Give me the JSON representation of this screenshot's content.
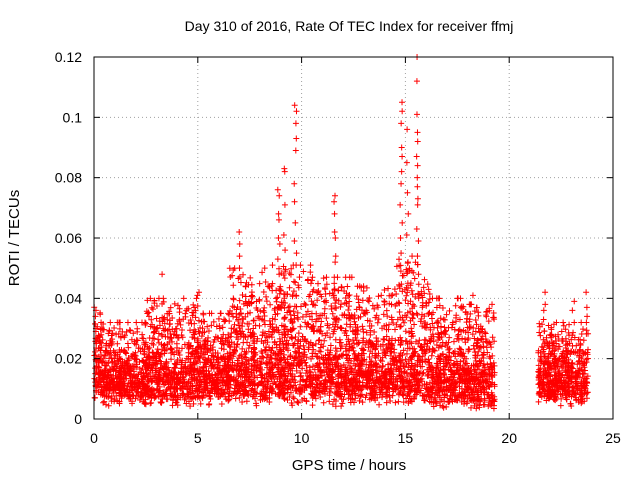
{
  "chart_data": {
    "type": "scatter",
    "title": "Day 310 of 2016, Rate Of TEC Index for receiver ffmj",
    "xlabel": "GPS time / hours",
    "ylabel": "ROTI / TECUs",
    "xlim": [
      0,
      25
    ],
    "ylim": [
      0,
      0.12
    ],
    "xticks": [
      0,
      5,
      10,
      15,
      20,
      25
    ],
    "xtick_labels": [
      "0",
      "5",
      "10",
      "15",
      "20",
      "25"
    ],
    "yticks": [
      0,
      0.02,
      0.04,
      0.06,
      0.08,
      0.1,
      0.12
    ],
    "ytick_labels": [
      "0",
      "0.02",
      "0.04",
      "0.06",
      "0.08",
      "0.1",
      "0.12"
    ],
    "grid": true,
    "marker": "+",
    "color": "#ff0000",
    "series": [
      {
        "name": "ROTI",
        "envelope": [
          {
            "x_start": 0.0,
            "x_end": 0.3,
            "low": 0.005,
            "high": 0.036
          },
          {
            "x_start": 0.3,
            "x_end": 2.5,
            "low": 0.004,
            "high": 0.03
          },
          {
            "x_start": 2.5,
            "x_end": 5.0,
            "low": 0.004,
            "high": 0.038
          },
          {
            "x_start": 5.0,
            "x_end": 6.5,
            "low": 0.004,
            "high": 0.033
          },
          {
            "x_start": 6.5,
            "x_end": 8.5,
            "low": 0.004,
            "high": 0.048
          },
          {
            "x_start": 8.5,
            "x_end": 10.5,
            "low": 0.004,
            "high": 0.049
          },
          {
            "x_start": 10.5,
            "x_end": 12.5,
            "low": 0.004,
            "high": 0.045
          },
          {
            "x_start": 12.5,
            "x_end": 14.5,
            "low": 0.004,
            "high": 0.042
          },
          {
            "x_start": 14.5,
            "x_end": 16.2,
            "low": 0.004,
            "high": 0.052
          },
          {
            "x_start": 16.2,
            "x_end": 18.0,
            "low": 0.003,
            "high": 0.038
          },
          {
            "x_start": 18.0,
            "x_end": 19.3,
            "low": 0.002,
            "high": 0.036
          },
          {
            "x_start": 21.4,
            "x_end": 23.8,
            "low": 0.004,
            "high": 0.03
          }
        ],
        "data_gap": [
          19.3,
          21.4
        ],
        "peaks": [
          {
            "x": 0.1,
            "values": [
              0.034,
              0.036,
              0.03,
              0.029
            ]
          },
          {
            "x": 3.3,
            "values": [
              0.048
            ]
          },
          {
            "x": 5.0,
            "values": [
              0.042,
              0.041
            ]
          },
          {
            "x": 7.0,
            "values": [
              0.062,
              0.058,
              0.054,
              0.05
            ]
          },
          {
            "x": 8.9,
            "values": [
              0.076,
              0.074,
              0.068,
              0.066,
              0.06,
              0.058,
              0.053,
              0.048
            ]
          },
          {
            "x": 9.2,
            "values": [
              0.083,
              0.082,
              0.071,
              0.061,
              0.056,
              0.049
            ]
          },
          {
            "x": 9.7,
            "values": [
              0.104,
              0.102,
              0.098,
              0.093,
              0.089,
              0.078,
              0.072,
              0.065,
              0.059,
              0.055
            ]
          },
          {
            "x": 11.6,
            "values": [
              0.074,
              0.072,
              0.068,
              0.062,
              0.06,
              0.054,
              0.052
            ]
          },
          {
            "x": 14.8,
            "values": [
              0.105,
              0.102,
              0.098,
              0.09,
              0.087,
              0.082,
              0.078,
              0.071,
              0.065,
              0.06,
              0.055,
              0.049
            ]
          },
          {
            "x": 15.1,
            "values": [
              0.096,
              0.085,
              0.075,
              0.068,
              0.061,
              0.052,
              0.045
            ]
          },
          {
            "x": 15.6,
            "values": [
              0.12,
              0.112,
              0.101,
              0.095,
              0.092,
              0.087,
              0.084,
              0.08,
              0.077,
              0.073,
              0.071,
              0.063,
              0.059,
              0.054,
              0.048
            ]
          },
          {
            "x": 18.2,
            "values": [
              0.041
            ]
          },
          {
            "x": 21.7,
            "values": [
              0.042,
              0.038,
              0.036,
              0.033
            ]
          },
          {
            "x": 23.1,
            "values": [
              0.039,
              0.036
            ]
          },
          {
            "x": 23.7,
            "values": [
              0.042,
              0.037,
              0.034
            ]
          }
        ]
      }
    ]
  }
}
